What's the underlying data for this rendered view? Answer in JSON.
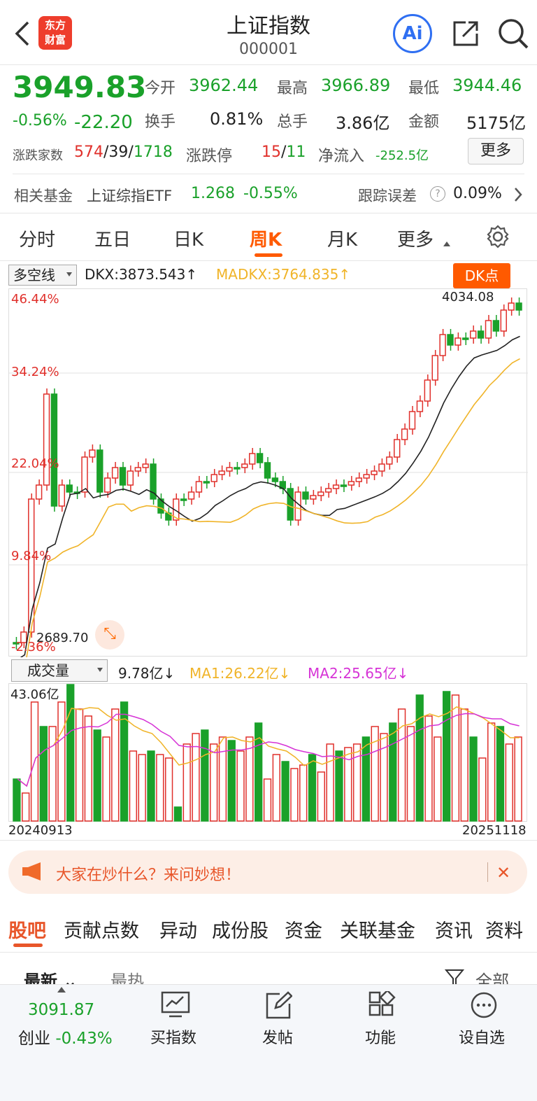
{
  "header": {
    "title": "上证指数",
    "code": "000001",
    "logo_line1": "东方",
    "logo_line2": "财富",
    "ai": "Ai"
  },
  "quote": {
    "price": "3949.83",
    "pct": "-0.56%",
    "chg": "-22.20",
    "open_label": "今开",
    "open": "3962.44",
    "high_label": "最高",
    "high": "3966.89",
    "low_label": "最低",
    "low": "3944.46",
    "turn_label": "换手",
    "turn": "0.81%",
    "vol_label": "总手",
    "vol": "3.86亿",
    "amt_label": "金额",
    "amt": "5175亿",
    "adv_label": "涨跌家数",
    "adv_up": "574",
    "adv_flat": "39",
    "adv_down": "1718",
    "limit_label": "涨跌停",
    "limit_up": "15",
    "limit_down": "11",
    "flow_label": "净流入",
    "flow": "-252.5亿",
    "more": "更多"
  },
  "fund": {
    "label": "相关基金",
    "name": "上证综指ETF",
    "price": "1.268",
    "pct": "-0.55%",
    "err_label": "跟踪误差",
    "err": "0.09%"
  },
  "tabs": [
    "分时",
    "五日",
    "日K",
    "周K",
    "月K",
    "更多"
  ],
  "indicator": {
    "name": "多空线",
    "dkx": "DKX:3873.543",
    "madkx": "MADKX:3764.835",
    "dk_btn": "DK点",
    "y_labels": [
      "46.44%",
      "34.24%",
      "22.04%",
      "9.84%",
      "-2.36%"
    ],
    "max_label": "4034.08",
    "min_label": "2689.70"
  },
  "volume": {
    "name": "成交量",
    "vol": "9.78亿",
    "ma1": "MA1:26.22亿",
    "ma2": "MA2:25.65亿",
    "max": "43.06亿",
    "start": "20240913",
    "end": "20251118"
  },
  "banner": {
    "text": "大家在炒什么？来问妙想！"
  },
  "sections": [
    "股吧",
    "贡献点数",
    "异动",
    "成份股",
    "资金",
    "关联基金",
    "资讯",
    "资料"
  ],
  "sort": {
    "latest": "最新",
    "hot": "最热",
    "all": "全部"
  },
  "bottom": {
    "cy_price": "3091.87",
    "cy_label": "创业",
    "cy_pct": "-0.43%",
    "buy": "买指数",
    "post": "发帖",
    "func": "功能",
    "watch": "设自选"
  },
  "colors": {
    "up": "#e0302b",
    "down": "#1aa12a",
    "accent": "#ff6a00",
    "ma": "#f0b429",
    "mag": "#d633d6"
  }
}
